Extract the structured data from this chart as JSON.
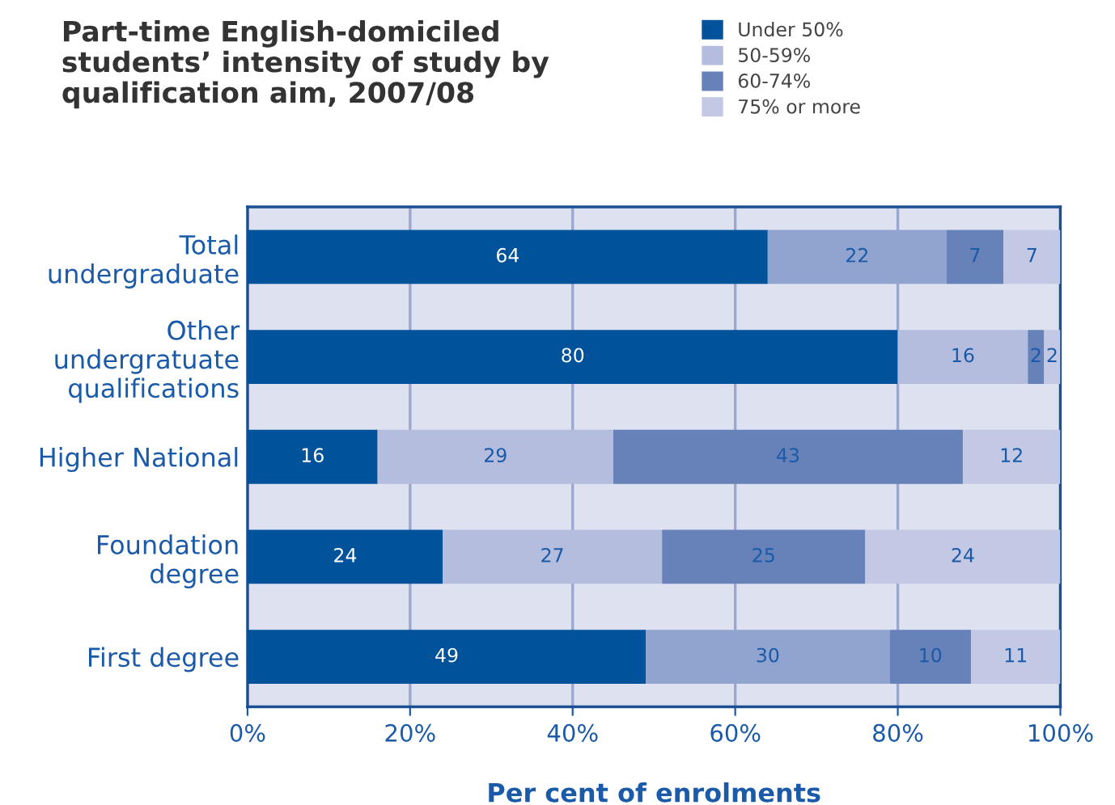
{
  "chart_data": {
    "type": "bar",
    "orientation": "horizontal",
    "stacked": true,
    "title": "Part-time English-domiciled\nstudents’ intensity of study by\nqualification aim, 2007/08",
    "xlabel": "Per cent of enrolments",
    "categories": [
      "Total\nundergraduate",
      "Other\nundergratuate\nqualifications",
      "Higher National",
      "Foundation\ndegree",
      "First degree"
    ],
    "series": [
      {
        "name": "Under 50%",
        "color": "#00529b",
        "values": [
          64,
          80,
          16,
          24,
          49
        ]
      },
      {
        "name": "50-59%",
        "color": "#b4bdde",
        "colors": [
          "#91a3cf",
          "#b4bdde",
          "#b4bdde",
          "#b4bdde",
          "#91a3cf"
        ],
        "values": [
          22,
          16,
          29,
          27,
          30
        ]
      },
      {
        "name": "60-74%",
        "color": "#6781b9",
        "values": [
          7,
          2,
          43,
          25,
          10
        ]
      },
      {
        "name": "75% or more",
        "color": "#c3c9e4",
        "values": [
          7,
          2,
          12,
          24,
          11
        ]
      }
    ],
    "xlim": [
      0,
      100
    ],
    "xticks": [
      {
        "value": 0,
        "label": "0%"
      },
      {
        "value": 20,
        "label": "20%"
      },
      {
        "value": 40,
        "label": "40%"
      },
      {
        "value": 60,
        "label": "60%"
      },
      {
        "value": 80,
        "label": "80%"
      },
      {
        "value": 100,
        "label": "100%"
      }
    ],
    "grid": "x",
    "legend": "top right",
    "data_labels": true
  }
}
